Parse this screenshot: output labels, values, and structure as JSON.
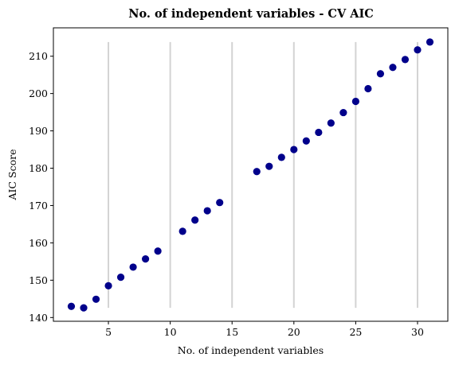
{
  "chart_data": {
    "type": "scatter",
    "title": "No. of independent variables - CV AIC",
    "xlabel": "No. of independent variables",
    "ylabel": "AIC Score",
    "xlim": [
      0.55,
      32.45
    ],
    "ylim": [
      139.0,
      217.6
    ],
    "xticks": [
      5,
      10,
      15,
      20,
      25,
      30
    ],
    "yticks": [
      140,
      150,
      160,
      170,
      180,
      190,
      200,
      210
    ],
    "vlines": {
      "x": [
        5,
        10,
        15,
        20,
        25,
        30
      ],
      "ymin": 142.6,
      "ymax": 213.8,
      "color": "#d3d3d3"
    },
    "marker_color": "#00008b",
    "series": [
      {
        "name": "CV AIC",
        "x": [
          2,
          3,
          4,
          5,
          6,
          7,
          8,
          9,
          11,
          12,
          13,
          14,
          17,
          18,
          19,
          20,
          21,
          22,
          23,
          24,
          25,
          26,
          27,
          28,
          29,
          30,
          31
        ],
        "y": [
          143.0,
          142.6,
          144.9,
          148.5,
          150.8,
          153.5,
          155.7,
          157.8,
          163.1,
          166.1,
          168.6,
          170.8,
          179.1,
          180.5,
          182.9,
          185.0,
          187.3,
          189.6,
          192.1,
          194.9,
          197.9,
          201.3,
          205.3,
          207.0,
          209.1,
          211.7,
          213.8
        ]
      }
    ]
  }
}
